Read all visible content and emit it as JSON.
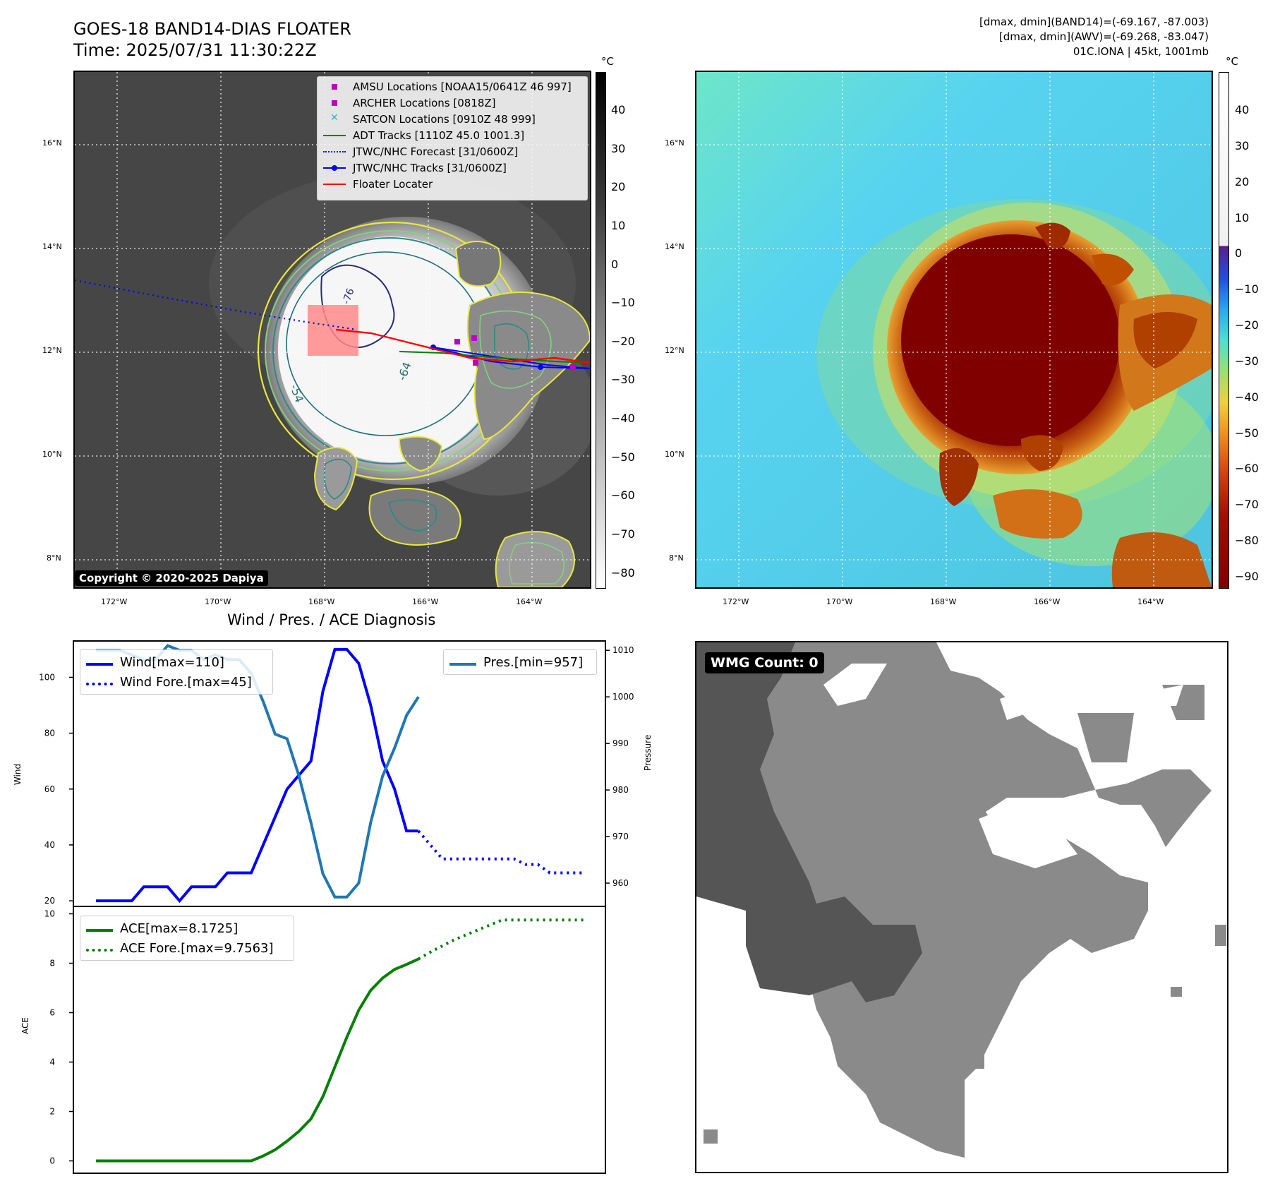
{
  "header": {
    "title_line1": "GOES-18 BAND14-DIAS FLOATER",
    "title_line2": "Time: 2025/07/31 11:30:22Z",
    "info_line1": "[dmax, dmin](BAND14)=(-69.167, -87.003)",
    "info_line2": "[dmax, dmin](AWV)=(-69.268, -83.047)",
    "info_line3": "01C.IONA | 45kt, 1001mb"
  },
  "map": {
    "lat_labels": [
      "16°N",
      "14°N",
      "12°N",
      "10°N",
      "8°N"
    ],
    "lon_labels": [
      "172°W",
      "170°W",
      "168°W",
      "166°W",
      "164°W"
    ],
    "copyright": "Copyright © 2020-2025 Dapiya",
    "contour_labels": [
      "-54",
      "-64",
      "-76"
    ],
    "legend": [
      {
        "label": "AMSU Locations [NOAA15/0641Z 46 997]",
        "symbol": "square",
        "color": "#bf00bf"
      },
      {
        "label": "ARCHER Locations [0818Z]",
        "symbol": "square",
        "color": "#bf00bf"
      },
      {
        "label": "SATCON Locations [0910Z 48 999]",
        "symbol": "x",
        "color": "#17becf"
      },
      {
        "label": "ADT Tracks [1110Z 45.0 1001.3]",
        "symbol": "line",
        "color": "#008000"
      },
      {
        "label": "JTWC/NHC Forecast [31/0600Z]",
        "symbol": "dotted",
        "color": "#0000ff"
      },
      {
        "label": "JTWC/NHC Tracks [31/0600Z]",
        "symbol": "line-dot",
        "color": "#0000ff"
      },
      {
        "label": "Floater Locater",
        "symbol": "line",
        "color": "#ff0000"
      }
    ]
  },
  "colorbar_left": {
    "unit": "°C",
    "ticks": [
      "40",
      "30",
      "20",
      "10",
      "0",
      "−10",
      "−20",
      "−30",
      "−40",
      "−50",
      "−60",
      "−70",
      "−80"
    ]
  },
  "colorbar_right": {
    "unit": "°C",
    "ticks": [
      "40",
      "30",
      "20",
      "10",
      "0",
      "−10",
      "−20",
      "−30",
      "−40",
      "−50",
      "−60",
      "−70",
      "−80",
      "−90"
    ]
  },
  "wmg": {
    "badge": "WMG Count: 0"
  },
  "chart_data": [
    {
      "type": "line",
      "title": "Wind / Pres. / ACE Diagnosis",
      "ylabel": "Wind",
      "ylabel_right": "Pressure",
      "ylim": [
        18,
        113
      ],
      "ylim_right": [
        955,
        1012
      ],
      "yticks": [
        20,
        40,
        60,
        80,
        100
      ],
      "yticks_right": [
        960,
        970,
        980,
        990,
        1000,
        1010
      ],
      "legend_left": [
        "Wind[max=110]",
        "Wind Fore.[max=45]"
      ],
      "legend_right": [
        "Pres.[min=957]"
      ],
      "series": [
        {
          "name": "Wind[max=110]",
          "style": "solid",
          "color": "#0000ff",
          "values": [
            20,
            20,
            20,
            20,
            25,
            25,
            25,
            20,
            25,
            25,
            25,
            30,
            30,
            30,
            40,
            50,
            60,
            65,
            70,
            95,
            110,
            110,
            105,
            90,
            70,
            60,
            45,
            45
          ]
        },
        {
          "name": "Wind Fore.[max=45]",
          "style": "dotted",
          "color": "#0000ff",
          "start_index": 27,
          "values": [
            45,
            40,
            35,
            35,
            35,
            35,
            35,
            35,
            35,
            33,
            33,
            30,
            30,
            30,
            30
          ]
        },
        {
          "name": "Pres.[min=957]",
          "style": "solid",
          "color": "#1f77b4",
          "axis": "right",
          "values": [
            1010,
            1010,
            1010,
            1009,
            1008,
            1008,
            1011,
            1010,
            1010,
            1008,
            1009,
            1008,
            1008,
            1005,
            999,
            992,
            991,
            983,
            973,
            962,
            957,
            957,
            960,
            973,
            983,
            989,
            996,
            1000
          ]
        }
      ]
    },
    {
      "type": "line",
      "ylabel": "ACE",
      "ylim": [
        -0.5,
        10.3
      ],
      "yticks": [
        0,
        2,
        4,
        6,
        8,
        10
      ],
      "legend": [
        "ACE[max=8.1725]",
        "ACE Fore.[max=9.7563]"
      ],
      "series": [
        {
          "name": "ACE[max=8.1725]",
          "style": "solid",
          "color": "#008000",
          "values": [
            0,
            0,
            0,
            0,
            0,
            0,
            0,
            0,
            0,
            0,
            0,
            0,
            0,
            0,
            0.2,
            0.45,
            0.8,
            1.2,
            1.7,
            2.6,
            3.8,
            5.0,
            6.1,
            6.9,
            7.4,
            7.75,
            7.95,
            8.17
          ]
        },
        {
          "name": "ACE Fore.[max=9.7563]",
          "style": "dotted",
          "color": "#008000",
          "start_index": 27,
          "values": [
            8.17,
            8.45,
            8.7,
            8.95,
            9.15,
            9.35,
            9.55,
            9.75,
            9.75,
            9.75,
            9.75,
            9.75,
            9.75,
            9.75,
            9.75
          ]
        }
      ]
    }
  ]
}
